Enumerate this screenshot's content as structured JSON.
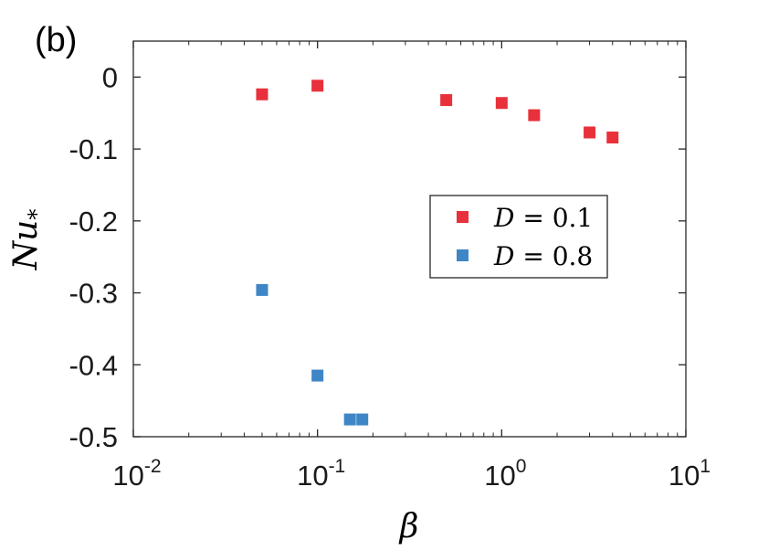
{
  "panel_label": "(b)",
  "colors": {
    "series_d01": "#e8313a",
    "series_d08": "#3f86c6",
    "axes": "#262626"
  },
  "chart_data": {
    "type": "scatter",
    "x_scale": "log",
    "xlim": [
      0.01,
      10
    ],
    "ylim": [
      -0.5,
      0.05
    ],
    "grid": false,
    "legend_position": "middle-right",
    "xlabel": "β",
    "ylabel": "Nu*",
    "ylabel_main": "Nu",
    "ylabel_sub": "*",
    "x_ticks": [
      {
        "value": 0.01,
        "base": "10",
        "exp": "-2"
      },
      {
        "value": 0.1,
        "base": "10",
        "exp": "-1"
      },
      {
        "value": 1,
        "base": "10",
        "exp": "0"
      },
      {
        "value": 10,
        "base": "10",
        "exp": "1"
      }
    ],
    "y_ticks": [
      {
        "value": 0,
        "label": "0"
      },
      {
        "value": -0.1,
        "label": "-0.1"
      },
      {
        "value": -0.2,
        "label": "-0.2"
      },
      {
        "value": -0.3,
        "label": "-0.3"
      },
      {
        "value": -0.4,
        "label": "-0.4"
      },
      {
        "value": -0.5,
        "label": "-0.5"
      }
    ],
    "series": [
      {
        "name": "D = 0.1",
        "legend_var": "D",
        "legend_rest": " = 0.1",
        "color": "#e8313a",
        "marker": "square",
        "points": [
          {
            "x": 0.05,
            "y": -0.024
          },
          {
            "x": 0.1,
            "y": -0.012
          },
          {
            "x": 0.5,
            "y": -0.032
          },
          {
            "x": 1.0,
            "y": -0.036
          },
          {
            "x": 1.5,
            "y": -0.053
          },
          {
            "x": 3.0,
            "y": -0.077
          },
          {
            "x": 4.0,
            "y": -0.084
          }
        ]
      },
      {
        "name": "D = 0.8",
        "legend_var": "D",
        "legend_rest": " = 0.8",
        "color": "#3f86c6",
        "marker": "square",
        "points": [
          {
            "x": 0.05,
            "y": -0.296
          },
          {
            "x": 0.1,
            "y": -0.415
          },
          {
            "x": 0.15,
            "y": -0.476
          },
          {
            "x": 0.175,
            "y": -0.476
          }
        ]
      }
    ]
  }
}
